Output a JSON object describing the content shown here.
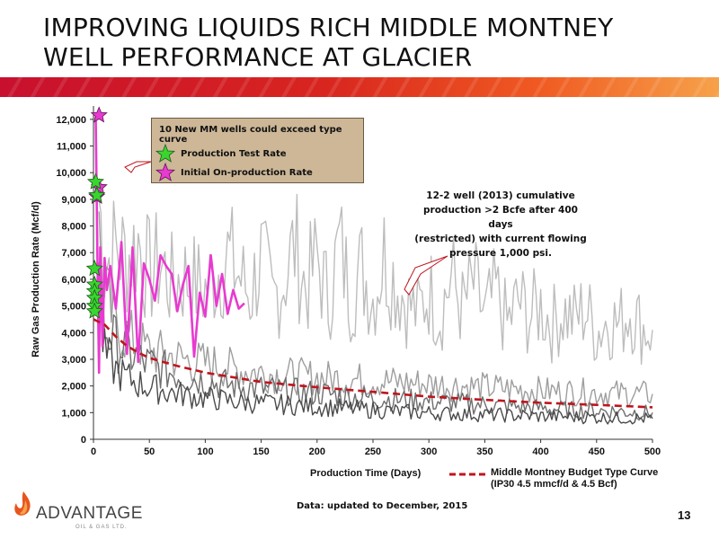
{
  "slide": {
    "title": "IMPROVING LIQUIDS RICH MIDDLE MONTNEY WELL PERFORMANCE AT GLACIER",
    "footnote": "Data: updated to December, 2015",
    "page_number": "13",
    "logo_text": "ADVANTAGE",
    "logo_sub": "OIL & GAS LTD.",
    "brand_colors": {
      "banner_start": "#c8102e",
      "banner_end": "#f6a24a",
      "logo_flame": "#e8541e"
    }
  },
  "legend_box": {
    "title": "10 New MM wells could exceed type curve",
    "items": [
      {
        "label": "Production Test Rate",
        "icon": "green-star-icon",
        "color": "#39d62f"
      },
      {
        "label": "Initial On-production Rate",
        "icon": "magenta-star-icon",
        "color": "#e83ad0"
      }
    ]
  },
  "annotation": {
    "lines": [
      "12-2 well (2013) cumulative",
      "production >2 Bcfe after 400 days",
      "(restricted) with current flowing",
      "pressure 1,000 psi."
    ]
  },
  "type_curve_legend": {
    "line1": "Middle Montney Budget Type Curve",
    "line2": "(IP30 4.5 mmcf/d & 4.5 Bcf)",
    "color": "#c0141d"
  },
  "chart_data": {
    "type": "line",
    "xlabel": "Production Time (Days)",
    "ylabel": "Raw Gas Production Rate (Mcf/d)",
    "xlim": [
      0,
      500
    ],
    "ylim": [
      0,
      12500
    ],
    "x_ticks": [
      0,
      50,
      100,
      150,
      200,
      250,
      300,
      350,
      400,
      450,
      500
    ],
    "y_ticks": [
      0,
      1000,
      2000,
      3000,
      4000,
      5000,
      6000,
      7000,
      8000,
      9000,
      10000,
      11000,
      12000
    ],
    "grid": false,
    "series": [
      {
        "name": "Middle Montney Budget Type Curve",
        "style": "dashed",
        "color": "#c0141d",
        "x": [
          0,
          10,
          20,
          30,
          40,
          50,
          75,
          100,
          150,
          200,
          250,
          300,
          350,
          400,
          450,
          500
        ],
        "y": [
          4500,
          4300,
          3850,
          3500,
          3250,
          3050,
          2750,
          2500,
          2150,
          1950,
          1780,
          1600,
          1480,
          1370,
          1290,
          1200
        ]
      },
      {
        "name": "Initial On-production Rate",
        "style": "solid",
        "color": "#e83ad0",
        "x": [
          2,
          4,
          5,
          6,
          8,
          10,
          12,
          15,
          20,
          25,
          30,
          35,
          40,
          45,
          50,
          55,
          60,
          65,
          70,
          75,
          80,
          85,
          90,
          95,
          100,
          105,
          110,
          115,
          120,
          125,
          130,
          135
        ],
        "y": [
          12100,
          5200,
          2500,
          7200,
          3500,
          6800,
          5600,
          6500,
          4900,
          7400,
          3200,
          7200,
          2900,
          6600,
          6000,
          5200,
          6900,
          6500,
          6200,
          4800,
          5800,
          6500,
          3100,
          5500,
          4600,
          6900,
          5000,
          6200,
          4700,
          5600,
          4900,
          5100
        ]
      },
      {
        "name": "",
        "style": "solid",
        "color": "#bdbdbd",
        "x": [
          5,
          10,
          20,
          30,
          40,
          50,
          60,
          70,
          80,
          100,
          120,
          140,
          150,
          160,
          170,
          180,
          190,
          200,
          210,
          220,
          230,
          240,
          250,
          260,
          270,
          280,
          290,
          300,
          310,
          320,
          330,
          340,
          350,
          360,
          370,
          380,
          390,
          400,
          410,
          420,
          430,
          440,
          450,
          460,
          470,
          480,
          490,
          500
        ],
        "y": [
          9000,
          6500,
          7200,
          6800,
          7400,
          6200,
          6600,
          5800,
          6100,
          5600,
          6900,
          5400,
          6800,
          5200,
          6000,
          7300,
          5600,
          6800,
          5200,
          7300,
          5400,
          6400,
          5300,
          6900,
          5900,
          5200,
          4700,
          5600,
          4700,
          6100,
          4900,
          5800,
          4600,
          5500,
          4300,
          5200,
          4600,
          5000,
          4300,
          4800,
          4500,
          4900,
          4000,
          4500,
          4300,
          4900,
          4200,
          4100
        ]
      },
      {
        "name": "",
        "style": "solid",
        "color": "#9e9e9e",
        "x": [
          5,
          10,
          20,
          30,
          40,
          50,
          70,
          90,
          110,
          130,
          150,
          170,
          190,
          210,
          230,
          250,
          270,
          290,
          310,
          330,
          350,
          370,
          390,
          410,
          430,
          450,
          470,
          490,
          500
        ],
        "y": [
          7500,
          5500,
          4200,
          3900,
          3600,
          3300,
          3100,
          2900,
          2800,
          2600,
          2500,
          2400,
          2350,
          2300,
          2250,
          2200,
          2150,
          2100,
          2050,
          2000,
          1950,
          1900,
          1850,
          1800,
          1780,
          1750,
          1720,
          1700,
          1700
        ]
      },
      {
        "name": "",
        "style": "solid",
        "color": "#6e6e6e",
        "x": [
          5,
          10,
          20,
          30,
          40,
          50,
          70,
          90,
          110,
          130,
          150,
          170,
          190,
          210,
          230,
          250,
          270,
          290,
          310,
          330,
          350,
          370,
          390,
          410,
          430,
          450,
          470,
          490,
          500
        ],
        "y": [
          6000,
          4200,
          3600,
          3300,
          3000,
          2800,
          2500,
          2300,
          2100,
          2000,
          1900,
          1800,
          1750,
          1700,
          1600,
          1550,
          1500,
          1450,
          1400,
          1350,
          1300,
          1250,
          1200,
          1150,
          1100,
          1080,
          1050,
          1000,
          1000
        ]
      },
      {
        "name": "",
        "style": "solid",
        "color": "#4a4a4a",
        "x": [
          5,
          10,
          20,
          30,
          40,
          50,
          70,
          90,
          110,
          130,
          150,
          170,
          190,
          210,
          230,
          250,
          270,
          290,
          310,
          330,
          350,
          370,
          390,
          410,
          430,
          450,
          470,
          490,
          500
        ],
        "y": [
          5000,
          3200,
          2600,
          2300,
          2100,
          1950,
          1750,
          1600,
          1500,
          1400,
          1350,
          1300,
          1250,
          1200,
          1150,
          1100,
          1050,
          1000,
          980,
          950,
          930,
          900,
          880,
          860,
          840,
          820,
          800,
          780,
          780
        ]
      }
    ],
    "markers": [
      {
        "name": "Initial On-production Rate",
        "shape": "star",
        "color": "#e83ad0",
        "points": [
          [
            5,
            12150
          ],
          [
            5,
            9450
          ],
          [
            3,
            9100
          ]
        ]
      },
      {
        "name": "Production Test Rate",
        "shape": "star",
        "color": "#39d62f",
        "points": [
          [
            2,
            9650
          ],
          [
            3,
            9150
          ],
          [
            1,
            6400
          ],
          [
            1,
            5800
          ],
          [
            1,
            5550
          ],
          [
            1,
            5300
          ],
          [
            1,
            5000
          ],
          [
            1,
            4800
          ]
        ]
      }
    ]
  }
}
